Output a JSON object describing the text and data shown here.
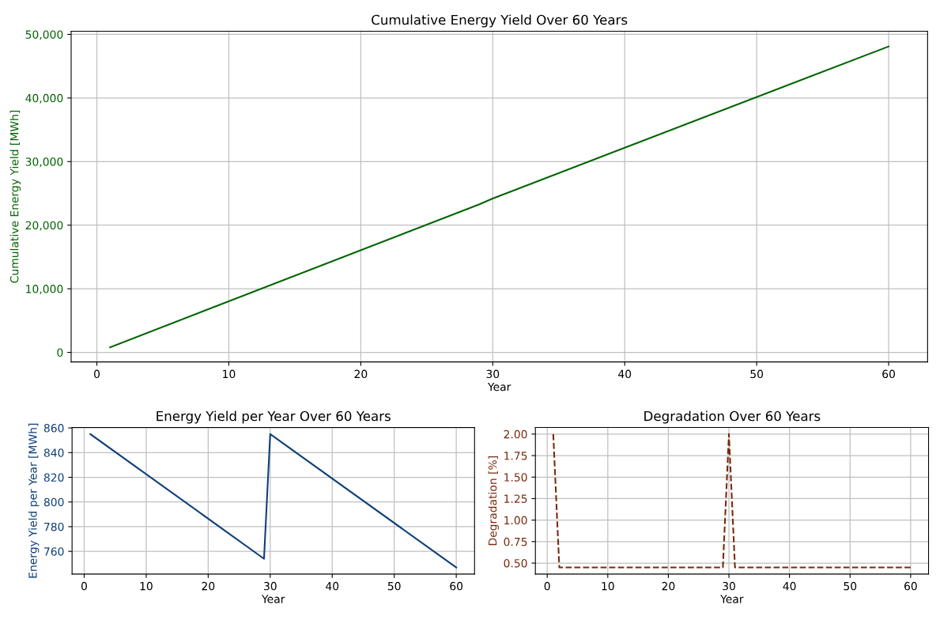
{
  "chart_data": [
    {
      "type": "line",
      "title": "Cumulative Energy Yield Over 60 Years",
      "xlabel": "Year",
      "ylabel": "Cumulative Energy Yield [MWh]",
      "x": [
        1,
        29,
        30,
        60
      ],
      "series": [
        {
          "color": "#006400",
          "values": [
            800,
            23300,
            24200,
            48100
          ]
        }
      ],
      "xlim": [
        -1.95,
        62.95
      ],
      "ylim": [
        -1500,
        50500
      ],
      "xticks": [
        0,
        10,
        20,
        30,
        40,
        50,
        60
      ],
      "yticks": [
        0,
        {
          "value": 10000,
          "label": "10,000"
        },
        {
          "value": 20000,
          "label": "20,000"
        },
        {
          "value": 30000,
          "label": "30,000"
        },
        {
          "value": 40000,
          "label": "40,000"
        },
        {
          "value": 50000,
          "label": "50,000"
        }
      ],
      "grid": true,
      "line_style": "solid"
    },
    {
      "type": "line",
      "title": "Energy Yield per Year Over 60 Years",
      "xlabel": "Year",
      "ylabel": "Energy Yield per Year [MWh]",
      "x": [
        1,
        29,
        30,
        60
      ],
      "series": [
        {
          "color": "#0f3f7a",
          "values": [
            855,
            754,
            855,
            747
          ]
        }
      ],
      "xlim": [
        -1.95,
        62.95
      ],
      "ylim": [
        741.6,
        860.4
      ],
      "xticks": [
        0,
        10,
        20,
        30,
        40,
        50,
        60
      ],
      "yticks": [
        760,
        780,
        800,
        820,
        840,
        860
      ],
      "grid": true,
      "line_style": "solid"
    },
    {
      "type": "line",
      "title": "Degradation Over 60 Years",
      "xlabel": "Year",
      "ylabel": "Degradation [%]",
      "x": [
        1,
        2,
        29,
        30,
        31,
        60
      ],
      "series": [
        {
          "color": "#7a2a0e",
          "values": [
            2.0,
            0.45,
            0.45,
            2.0,
            0.45,
            0.45
          ]
        }
      ],
      "xlim": [
        -1.95,
        62.95
      ],
      "ylim": [
        0.3725,
        2.0775
      ],
      "xticks": [
        0,
        10,
        20,
        30,
        40,
        50,
        60
      ],
      "yticks": [
        {
          "value": 0.5,
          "label": "0.50"
        },
        {
          "value": 0.75,
          "label": "0.75"
        },
        {
          "value": 1.0,
          "label": "1.00"
        },
        {
          "value": 1.25,
          "label": "1.25"
        },
        {
          "value": 1.5,
          "label": "1.50"
        },
        {
          "value": 1.75,
          "label": "1.75"
        },
        {
          "value": 2.0,
          "label": "2.00"
        }
      ],
      "grid": true,
      "line_style": "dashed"
    }
  ]
}
